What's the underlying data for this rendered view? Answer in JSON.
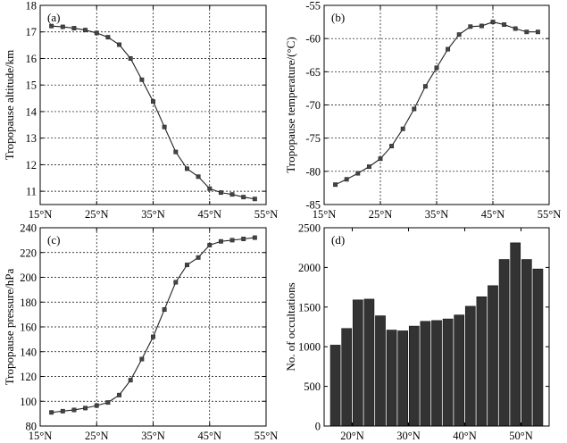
{
  "chart_data": [
    {
      "id": "a",
      "type": "line",
      "panel_label": "(a)",
      "ylabel": "Tropopause altitude/km",
      "xlim": [
        15,
        55
      ],
      "ylim": [
        10.5,
        18
      ],
      "x_ticks": [
        15,
        25,
        35,
        45,
        55
      ],
      "x_tick_labels": [
        "15°N",
        "25°N",
        "35°N",
        "45°N",
        "55°N"
      ],
      "y_ticks": [
        11,
        12,
        13,
        14,
        15,
        16,
        17,
        18
      ],
      "y_tick_labels": [
        "11",
        "12",
        "13",
        "14",
        "15",
        "16",
        "17",
        "18"
      ],
      "grid": true,
      "x": [
        17,
        19,
        21,
        23,
        25,
        27,
        29,
        31,
        33,
        35,
        37,
        39,
        41,
        43,
        45,
        47,
        49,
        51,
        53
      ],
      "values": [
        17.22,
        17.19,
        17.14,
        17.07,
        16.96,
        16.8,
        16.52,
        16.0,
        15.2,
        14.38,
        13.42,
        12.48,
        11.85,
        11.55,
        11.1,
        10.95,
        10.88,
        10.78,
        10.71
      ]
    },
    {
      "id": "b",
      "type": "line",
      "panel_label": "(b)",
      "ylabel": "Tropopause temperature/(°C)",
      "xlim": [
        15,
        55
      ],
      "ylim": [
        -85,
        -55
      ],
      "x_ticks": [
        15,
        25,
        35,
        45,
        55
      ],
      "x_tick_labels": [
        "15°N",
        "25°N",
        "35°N",
        "45°N",
        "55°N"
      ],
      "y_ticks": [
        -85,
        -80,
        -75,
        -70,
        -65,
        -60,
        -55
      ],
      "y_tick_labels": [
        "-85",
        "-80",
        "-75",
        "-70",
        "-65",
        "-60",
        "-55"
      ],
      "grid": true,
      "x": [
        17,
        19,
        21,
        23,
        25,
        27,
        29,
        31,
        33,
        35,
        37,
        39,
        41,
        43,
        45,
        47,
        49,
        51,
        53
      ],
      "values": [
        -82.0,
        -81.2,
        -80.3,
        -79.3,
        -78.1,
        -76.2,
        -73.6,
        -70.6,
        -67.2,
        -64.4,
        -61.6,
        -59.4,
        -58.2,
        -58.1,
        -57.5,
        -57.9,
        -58.5,
        -59.0,
        -59.0
      ]
    },
    {
      "id": "c",
      "type": "line",
      "panel_label": "(c)",
      "ylabel": "Tropopause pressure/hPa",
      "xlim": [
        15,
        55
      ],
      "ylim": [
        80,
        240
      ],
      "x_ticks": [
        15,
        25,
        35,
        45,
        55
      ],
      "x_tick_labels": [
        "15°N",
        "25°N",
        "35°N",
        "45°N",
        "55°N"
      ],
      "y_ticks": [
        80,
        100,
        120,
        140,
        160,
        180,
        200,
        220,
        240
      ],
      "y_tick_labels": [
        "80",
        "100",
        "120",
        "140",
        "160",
        "180",
        "200",
        "220",
        "240"
      ],
      "grid": true,
      "x": [
        17,
        19,
        21,
        23,
        25,
        27,
        29,
        31,
        33,
        35,
        37,
        39,
        41,
        43,
        45,
        47,
        49,
        51,
        53
      ],
      "values": [
        91,
        92,
        93,
        94.5,
        96.5,
        99,
        105,
        117,
        134,
        152,
        174,
        196,
        210,
        216,
        226,
        229,
        230,
        231,
        232
      ]
    },
    {
      "id": "d",
      "type": "bar",
      "panel_label": "(d)",
      "ylabel": "No. of occultations",
      "xlim": [
        15,
        55
      ],
      "ylim": [
        0,
        2500
      ],
      "x_ticks": [
        20,
        30,
        40,
        50
      ],
      "x_tick_labels": [
        "20°N",
        "30°N",
        "40°N",
        "50°N"
      ],
      "y_ticks": [
        0,
        500,
        1000,
        1500,
        2000,
        2500
      ],
      "y_tick_labels": [
        "0",
        "500",
        "1000",
        "1500",
        "2000",
        "2500"
      ],
      "grid": false,
      "x": [
        17,
        19,
        21,
        23,
        25,
        27,
        29,
        31,
        33,
        35,
        37,
        39,
        41,
        43,
        45,
        47,
        49,
        51,
        53
      ],
      "values": [
        1020,
        1230,
        1590,
        1600,
        1390,
        1210,
        1200,
        1260,
        1320,
        1330,
        1350,
        1400,
        1510,
        1630,
        1770,
        2100,
        2310,
        2100,
        1980
      ]
    }
  ]
}
